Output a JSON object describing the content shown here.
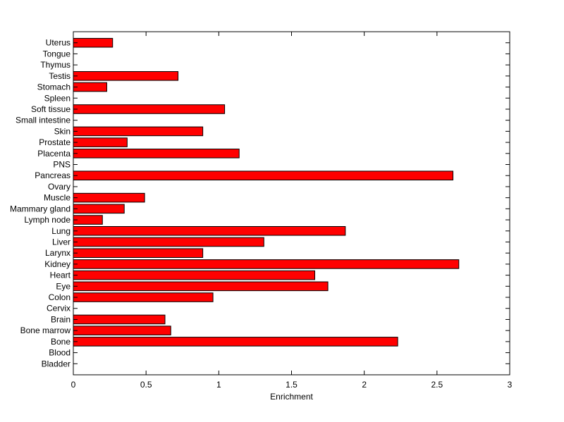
{
  "chart_data": {
    "type": "bar",
    "orientation": "horizontal",
    "title": "",
    "xlabel": "Enrichment",
    "ylabel": "",
    "xlim": [
      0,
      3
    ],
    "xticks": [
      "0",
      "0.5",
      "1",
      "1.5",
      "2",
      "2.5",
      "3"
    ],
    "grid": false,
    "bar_color": "#ff0000",
    "categories": [
      "Bladder",
      "Blood",
      "Bone",
      "Bone marrow",
      "Brain",
      "Cervix",
      "Colon",
      "Eye",
      "Heart",
      "Kidney",
      "Larynx",
      "Liver",
      "Lung",
      "Lymph node",
      "Mammary gland",
      "Muscle",
      "Ovary",
      "Pancreas",
      "PNS",
      "Placenta",
      "Prostate",
      "Skin",
      "Small intestine",
      "Soft tissue",
      "Spleen",
      "Stomach",
      "Testis",
      "Thymus",
      "Tongue",
      "Uterus"
    ],
    "values": [
      0,
      0,
      2.23,
      0.67,
      0.63,
      0,
      0.96,
      1.75,
      1.66,
      2.65,
      0.89,
      1.31,
      1.87,
      0.2,
      0.35,
      0.49,
      0,
      2.61,
      0,
      1.14,
      0.37,
      0.89,
      0,
      1.04,
      0,
      0.23,
      0.72,
      0,
      0,
      0.27
    ]
  }
}
